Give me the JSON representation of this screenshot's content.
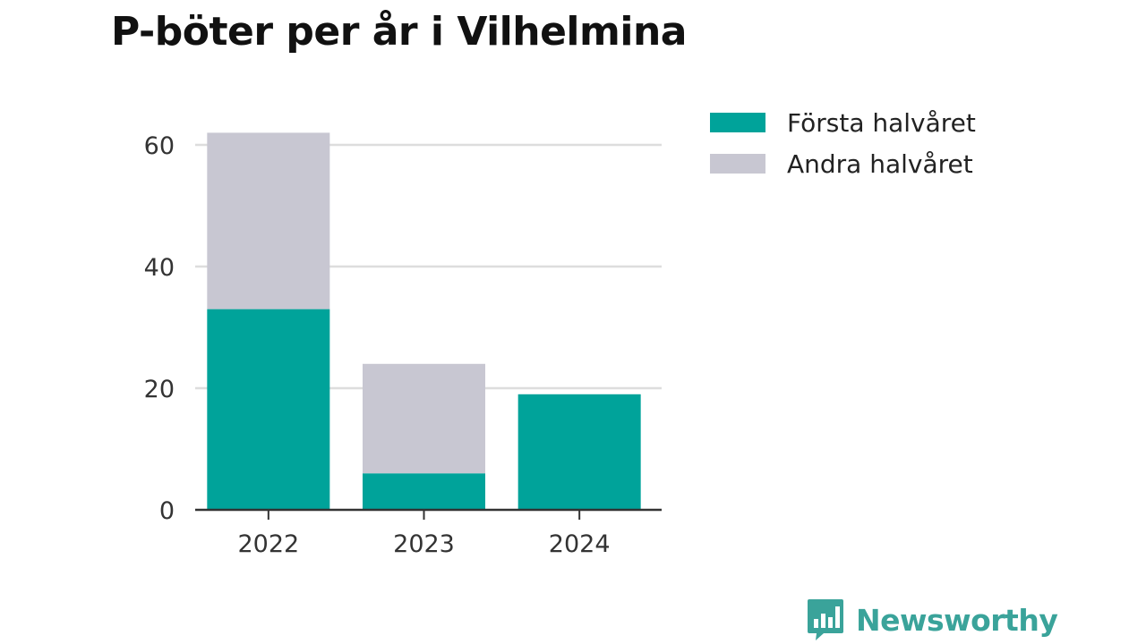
{
  "chart_data": {
    "type": "bar",
    "stacked": true,
    "title": "P-böter per år i Vilhelmina",
    "categories": [
      "2022",
      "2023",
      "2024"
    ],
    "series": [
      {
        "name": "Första halvåret",
        "values": [
          33,
          6,
          19
        ],
        "color": "#00a39a"
      },
      {
        "name": "Andra halvåret",
        "values": [
          29,
          18,
          0
        ],
        "color": "#c8c7d2"
      }
    ],
    "yticks": [
      0,
      20,
      40,
      60
    ],
    "ylim": [
      0,
      60
    ],
    "grid": true,
    "legend_position": "top-right",
    "xlabel": "",
    "ylabel": ""
  },
  "branding": {
    "name": "Newsworthy",
    "logo_icon": "newsworthy-bar-chart-icon",
    "color": "#3aa39a"
  }
}
